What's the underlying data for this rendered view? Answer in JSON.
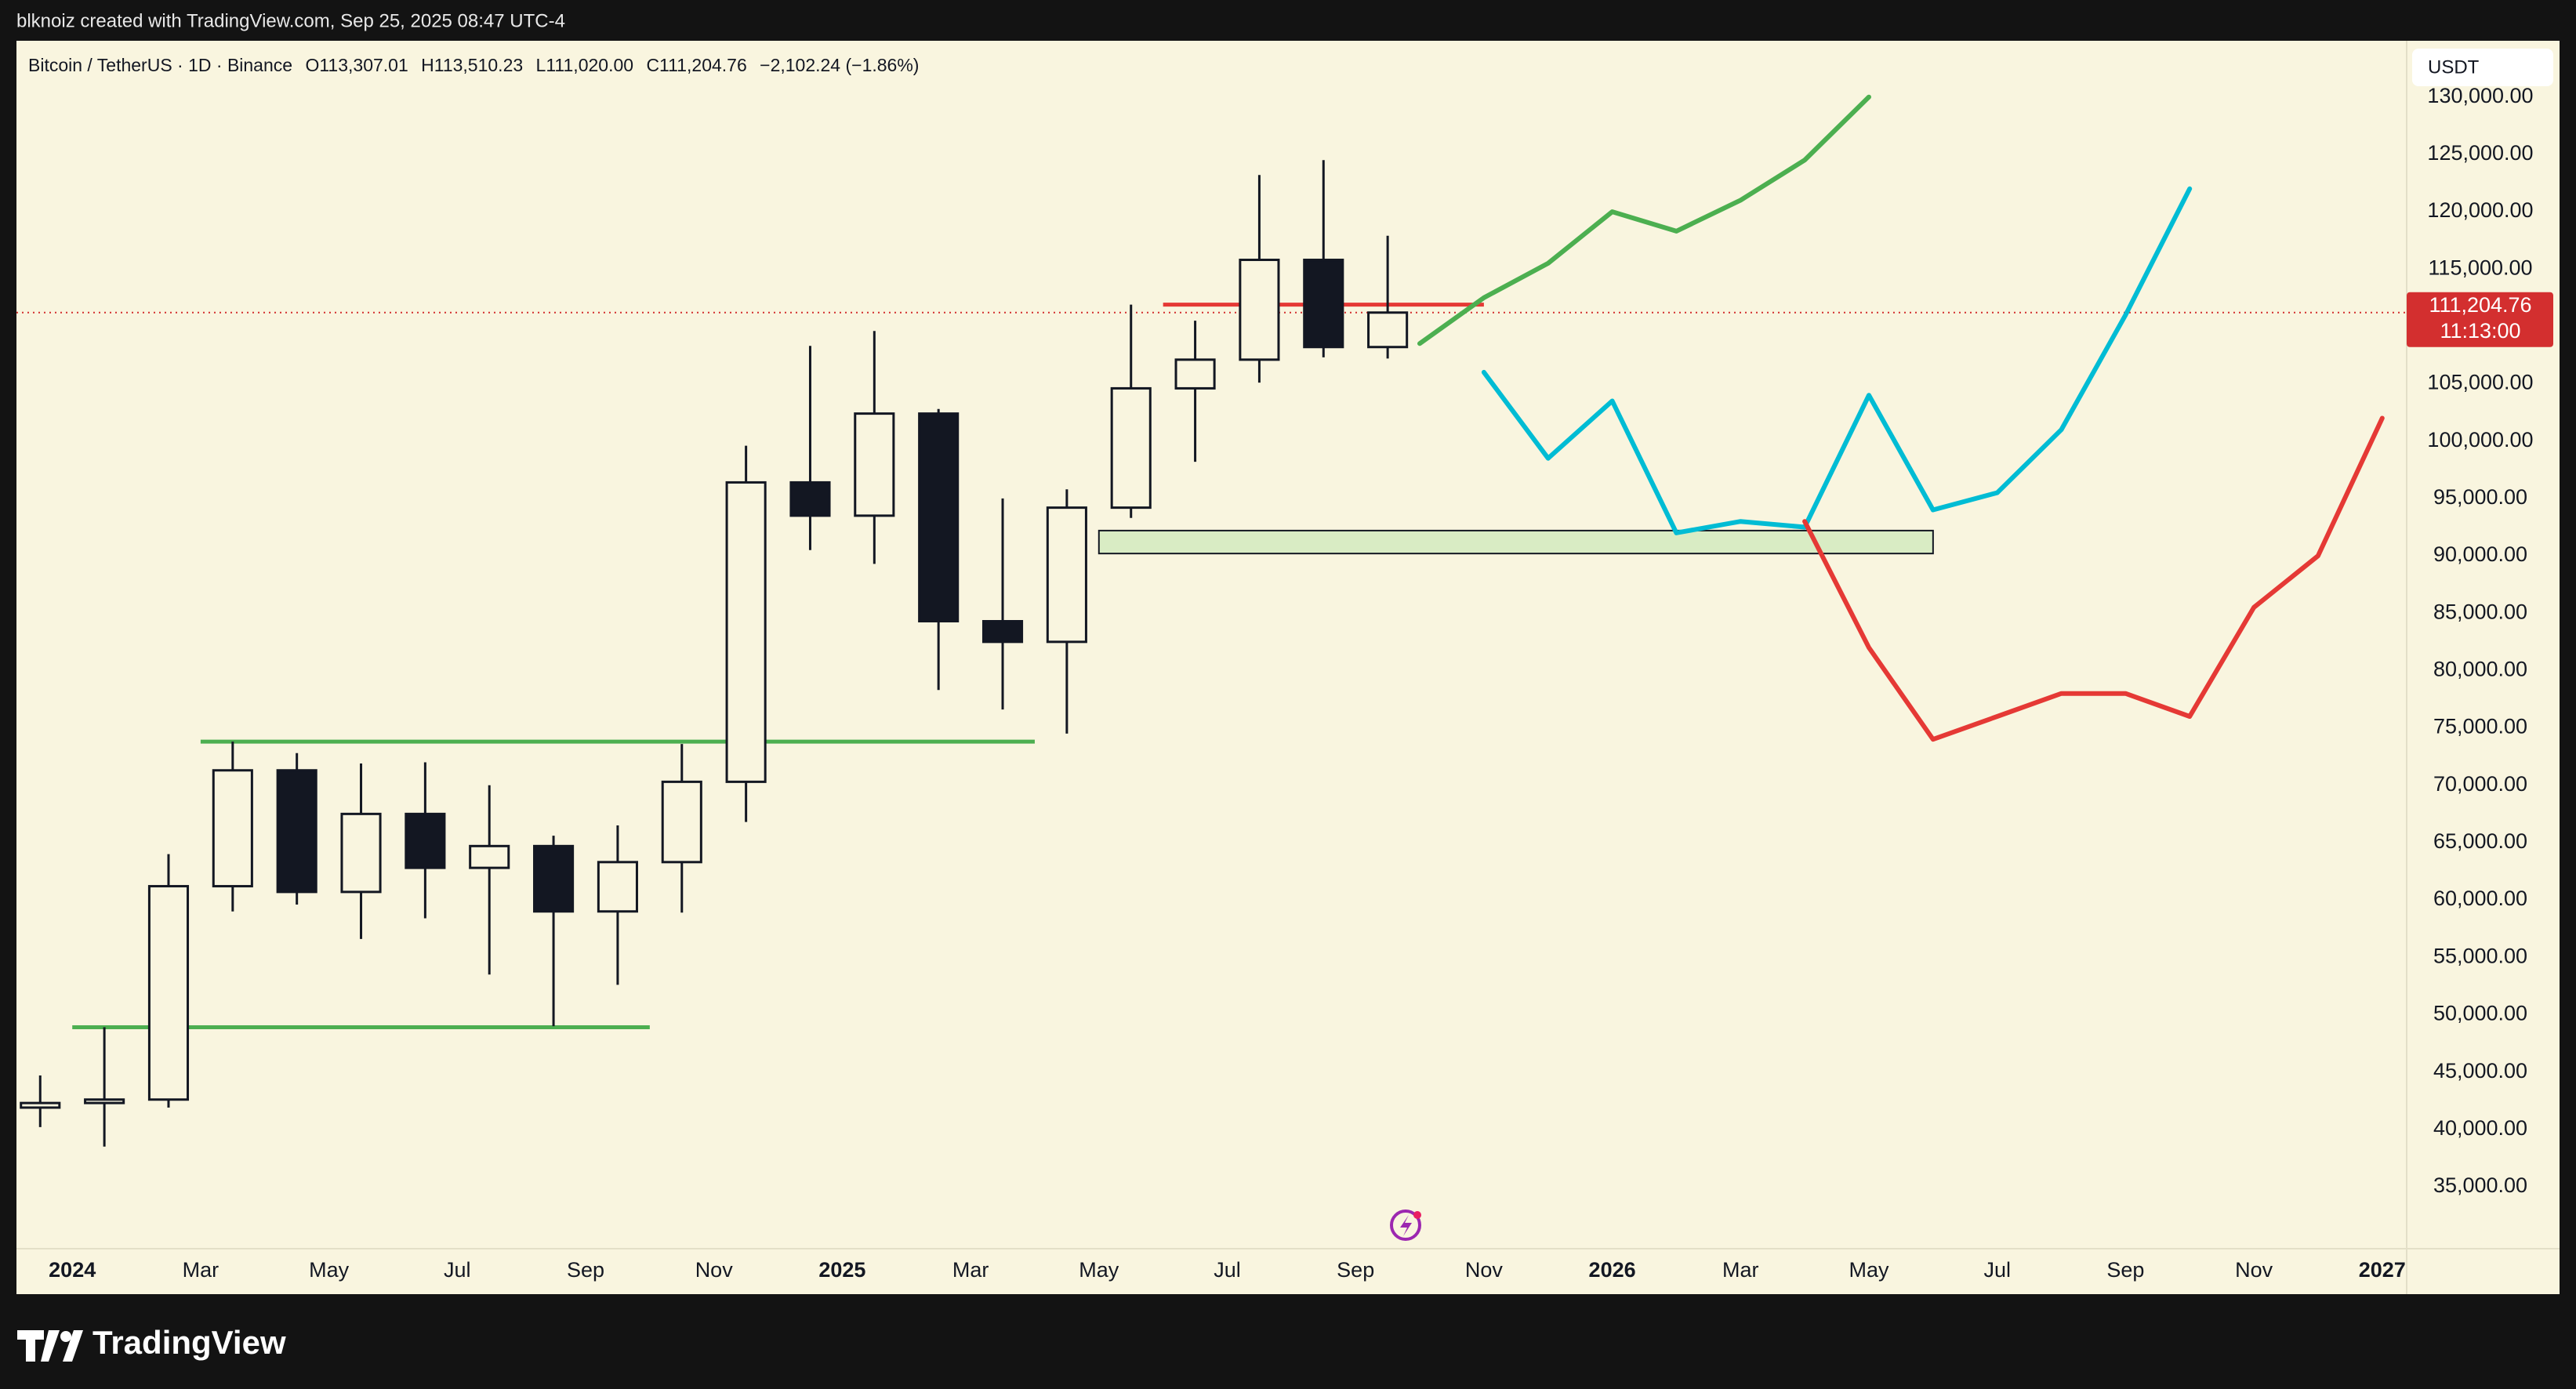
{
  "header": {
    "credit": "blknoiz created with TradingView.com, Sep 25, 2025 08:47 UTC-4",
    "symbol": "Bitcoin / TetherUS · 1D · Binance",
    "open": "O113,307.01",
    "high": "H113,510.23",
    "low": "L111,020.00",
    "close": "C111,204.76",
    "change": "−2,102.24 (−1.86%)",
    "watermark": "TradingView"
  },
  "chart_data": {
    "type": "candlestick",
    "currency": "USDT",
    "x": [
      "2023-12",
      "2024-01",
      "2024-02",
      "2024-03",
      "2024-04",
      "2024-05",
      "2024-06",
      "2024-07",
      "2024-08",
      "2024-09",
      "2024-10",
      "2024-11",
      "2024-12",
      "2025-01",
      "2025-02",
      "2025-03",
      "2025-04",
      "2025-05",
      "2025-06",
      "2025-07",
      "2025-08",
      "2025-09"
    ],
    "open": [
      41900,
      42300,
      42600,
      61200,
      71300,
      60700,
      67500,
      62800,
      64700,
      59000,
      63300,
      70300,
      96400,
      93500,
      102400,
      84300,
      82500,
      94200,
      104600,
      107100,
      115800,
      108200
    ],
    "high": [
      44700,
      48900,
      64000,
      73800,
      72800,
      71900,
      72000,
      70000,
      65600,
      66500,
      73600,
      99600,
      108300,
      109600,
      102800,
      95000,
      95800,
      111900,
      110500,
      123200,
      124500,
      117900
    ],
    "low": [
      40200,
      38500,
      41900,
      59000,
      59600,
      56600,
      58400,
      53500,
      49000,
      52600,
      58900,
      66800,
      90500,
      89300,
      78300,
      76600,
      74500,
      93300,
      98200,
      105100,
      107300,
      107200
    ],
    "close": [
      42300,
      42600,
      61200,
      71300,
      60700,
      67500,
      62800,
      64700,
      59000,
      63300,
      70300,
      96400,
      93500,
      102400,
      84300,
      82500,
      94200,
      104600,
      107100,
      115800,
      108200,
      111204.76
    ],
    "candle_color": "#131722",
    "lines": [
      {
        "color": "#4caf50",
        "x": [
          "2025-10",
          "2025-11",
          "2025-12",
          "2026-01",
          "2026-02",
          "2026-03",
          "2026-04",
          "2026-05"
        ],
        "values": [
          108500,
          112500,
          115500,
          120000,
          118300,
          121000,
          124500,
          130000
        ]
      },
      {
        "color": "#00bcd4",
        "x": [
          "2025-11",
          "2025-12",
          "2026-01",
          "2026-02",
          "2026-03",
          "2026-04",
          "2026-05",
          "2026-06",
          "2026-07",
          "2026-08",
          "2026-09",
          "2026-10"
        ],
        "values": [
          106000,
          98500,
          103500,
          92000,
          93000,
          92500,
          104000,
          94000,
          95500,
          101000,
          111000,
          122000
        ]
      },
      {
        "color": "#e53935",
        "x": [
          "2026-04",
          "2026-05",
          "2026-06",
          "2026-07",
          "2026-08",
          "2026-09",
          "2026-10",
          "2026-11",
          "2026-12",
          "2027-01"
        ],
        "values": [
          93000,
          82000,
          74000,
          76000,
          78000,
          78000,
          76000,
          85500,
          90000,
          102000
        ]
      }
    ],
    "levels": [
      {
        "value": 48900,
        "from": "2024-01",
        "to": "2024-10",
        "color": "#4caf50"
      },
      {
        "value": 73800,
        "from": "2024-03",
        "to": "2025-04",
        "color": "#4caf50"
      },
      {
        "value": 111900,
        "from": "2025-06",
        "to": "2025-11",
        "color": "#e53935"
      }
    ],
    "zone": {
      "low": 90200,
      "high": 92200,
      "from": "2025-05",
      "to": "2026-06",
      "color": "#d9ecc4"
    },
    "last_price": {
      "value": 111204.76,
      "label": "111,204.76",
      "countdown": "11:13:00",
      "color": "#d32f2f"
    },
    "ylim": [
      29600,
      134900
    ],
    "yticks": [
      {
        "value": 35000,
        "label": "35,000.00"
      },
      {
        "value": 40000,
        "label": "40,000.00"
      },
      {
        "value": 45000,
        "label": "45,000.00"
      },
      {
        "value": 50000,
        "label": "50,000.00"
      },
      {
        "value": 55000,
        "label": "55,000.00"
      },
      {
        "value": 60000,
        "label": "60,000.00"
      },
      {
        "value": 65000,
        "label": "65,000.00"
      },
      {
        "value": 70000,
        "label": "70,000.00"
      },
      {
        "value": 75000,
        "label": "75,000.00"
      },
      {
        "value": 80000,
        "label": "80,000.00"
      },
      {
        "value": 85000,
        "label": "85,000.00"
      },
      {
        "value": 90000,
        "label": "90,000.00"
      },
      {
        "value": 95000,
        "label": "95,000.00"
      },
      {
        "value": 100000,
        "label": "100,000.00"
      },
      {
        "value": 105000,
        "label": "105,000.00"
      },
      {
        "value": 110000,
        "label": "110,000.00"
      },
      {
        "value": 115000,
        "label": "115,000.00"
      },
      {
        "value": 120000,
        "label": "120,000.00"
      },
      {
        "value": 125000,
        "label": "125,000.00"
      },
      {
        "value": 130000,
        "label": "130,000.00"
      }
    ],
    "xticks": [
      {
        "value": "2024-01",
        "label": "2024"
      },
      {
        "value": "2024-03",
        "label": "Mar"
      },
      {
        "value": "2024-05",
        "label": "May"
      },
      {
        "value": "2024-07",
        "label": "Jul"
      },
      {
        "value": "2024-09",
        "label": "Sep"
      },
      {
        "value": "2024-11",
        "label": "Nov"
      },
      {
        "value": "2025-01",
        "label": "2025"
      },
      {
        "value": "2025-03",
        "label": "Mar"
      },
      {
        "value": "2025-05",
        "label": "May"
      },
      {
        "value": "2025-07",
        "label": "Jul"
      },
      {
        "value": "2025-09",
        "label": "Sep"
      },
      {
        "value": "2025-11",
        "label": "Nov"
      },
      {
        "value": "2026-01",
        "label": "2026"
      },
      {
        "value": "2026-03",
        "label": "Mar"
      },
      {
        "value": "2026-05",
        "label": "May"
      },
      {
        "value": "2026-07",
        "label": "Jul"
      },
      {
        "value": "2026-09",
        "label": "Sep"
      },
      {
        "value": "2026-11",
        "label": "Nov"
      },
      {
        "value": "2027-01",
        "label": "2027"
      }
    ]
  }
}
